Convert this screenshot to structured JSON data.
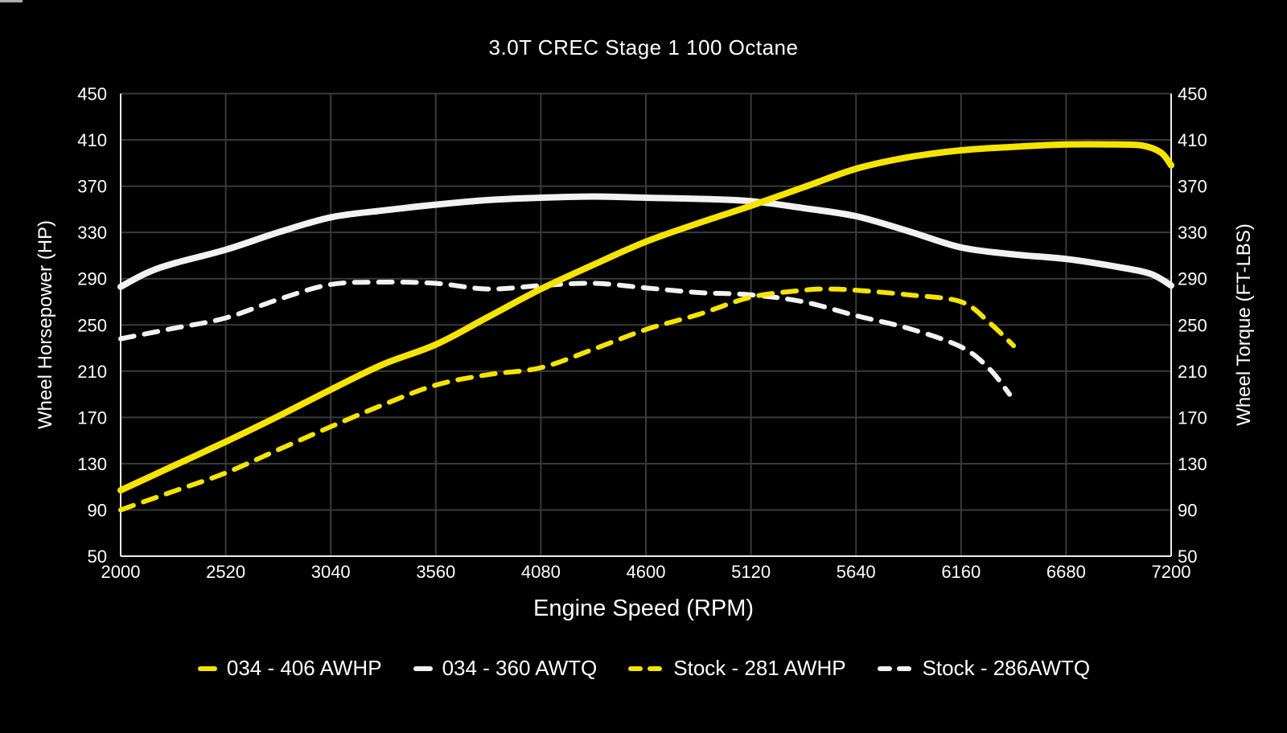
{
  "chart_data": {
    "type": "line",
    "title": "3.0T CREC Stage 1 100 Octane",
    "xlabel": "Engine Speed (RPM)",
    "ylabel_left": "Wheel Horsepower (HP)",
    "ylabel_right": "Wheel Torque (FT-LBS)",
    "x_ticks": [
      2000,
      2520,
      3040,
      3560,
      4080,
      4600,
      5120,
      5640,
      6160,
      6680,
      7200
    ],
    "y_ticks": [
      450,
      410,
      370,
      330,
      290,
      250,
      210,
      170,
      130,
      90,
      50
    ],
    "xlim": [
      2000,
      7200
    ],
    "ylim": [
      50,
      450
    ],
    "grid": true,
    "legend_position": "bottom",
    "colors": {
      "yellow": "#f6e300",
      "white": "#f2f2f2",
      "grid": "#3a3a3a",
      "axis_frame": "#eeeeee",
      "background": "#000000"
    },
    "series": [
      {
        "name": "034 - 406 AWHP",
        "color": "yellow",
        "style": "solid",
        "axis": "left",
        "points": [
          [
            2000,
            107
          ],
          [
            2260,
            128
          ],
          [
            2520,
            149
          ],
          [
            2780,
            171
          ],
          [
            3040,
            194
          ],
          [
            3300,
            216
          ],
          [
            3560,
            233
          ],
          [
            3820,
            257
          ],
          [
            4080,
            281
          ],
          [
            4340,
            302
          ],
          [
            4600,
            322
          ],
          [
            4860,
            338
          ],
          [
            5120,
            353
          ],
          [
            5380,
            369
          ],
          [
            5640,
            385
          ],
          [
            5900,
            395
          ],
          [
            6160,
            401
          ],
          [
            6420,
            404
          ],
          [
            6680,
            406
          ],
          [
            6940,
            406
          ],
          [
            7060,
            405
          ],
          [
            7150,
            399
          ],
          [
            7200,
            388
          ]
        ]
      },
      {
        "name": "034 - 360 AWTQ",
        "color": "white",
        "style": "solid",
        "axis": "right",
        "points": [
          [
            2000,
            283
          ],
          [
            2130,
            295
          ],
          [
            2260,
            303
          ],
          [
            2520,
            315
          ],
          [
            2780,
            330
          ],
          [
            3040,
            343
          ],
          [
            3300,
            349
          ],
          [
            3560,
            354
          ],
          [
            3820,
            358
          ],
          [
            4080,
            360
          ],
          [
            4340,
            361
          ],
          [
            4600,
            360
          ],
          [
            4860,
            359
          ],
          [
            5120,
            357
          ],
          [
            5380,
            351
          ],
          [
            5640,
            344
          ],
          [
            5900,
            331
          ],
          [
            6160,
            317
          ],
          [
            6420,
            311
          ],
          [
            6680,
            307
          ],
          [
            6940,
            300
          ],
          [
            7100,
            294
          ],
          [
            7200,
            284
          ]
        ]
      },
      {
        "name": "Stock - 281 AWHP",
        "color": "yellow",
        "style": "dashed",
        "axis": "left",
        "points": [
          [
            2000,
            90
          ],
          [
            2260,
            106
          ],
          [
            2520,
            122
          ],
          [
            2780,
            142
          ],
          [
            3040,
            162
          ],
          [
            3300,
            181
          ],
          [
            3560,
            198
          ],
          [
            3820,
            207
          ],
          [
            4080,
            213
          ],
          [
            4340,
            229
          ],
          [
            4600,
            246
          ],
          [
            4860,
            259
          ],
          [
            5120,
            274
          ],
          [
            5380,
            280
          ],
          [
            5500,
            281
          ],
          [
            5640,
            280
          ],
          [
            5900,
            276
          ],
          [
            6160,
            270
          ],
          [
            6300,
            252
          ],
          [
            6420,
            232
          ]
        ]
      },
      {
        "name": "Stock - 286AWTQ",
        "color": "white",
        "style": "dashed",
        "axis": "right",
        "points": [
          [
            2000,
            238
          ],
          [
            2260,
            247
          ],
          [
            2520,
            256
          ],
          [
            2780,
            272
          ],
          [
            3040,
            285
          ],
          [
            3300,
            287
          ],
          [
            3560,
            286
          ],
          [
            3820,
            281
          ],
          [
            4080,
            284
          ],
          [
            4340,
            286
          ],
          [
            4600,
            282
          ],
          [
            4860,
            278
          ],
          [
            5120,
            276
          ],
          [
            5380,
            270
          ],
          [
            5640,
            258
          ],
          [
            5900,
            247
          ],
          [
            6160,
            231
          ],
          [
            6300,
            212
          ],
          [
            6400,
            190
          ]
        ]
      }
    ]
  }
}
